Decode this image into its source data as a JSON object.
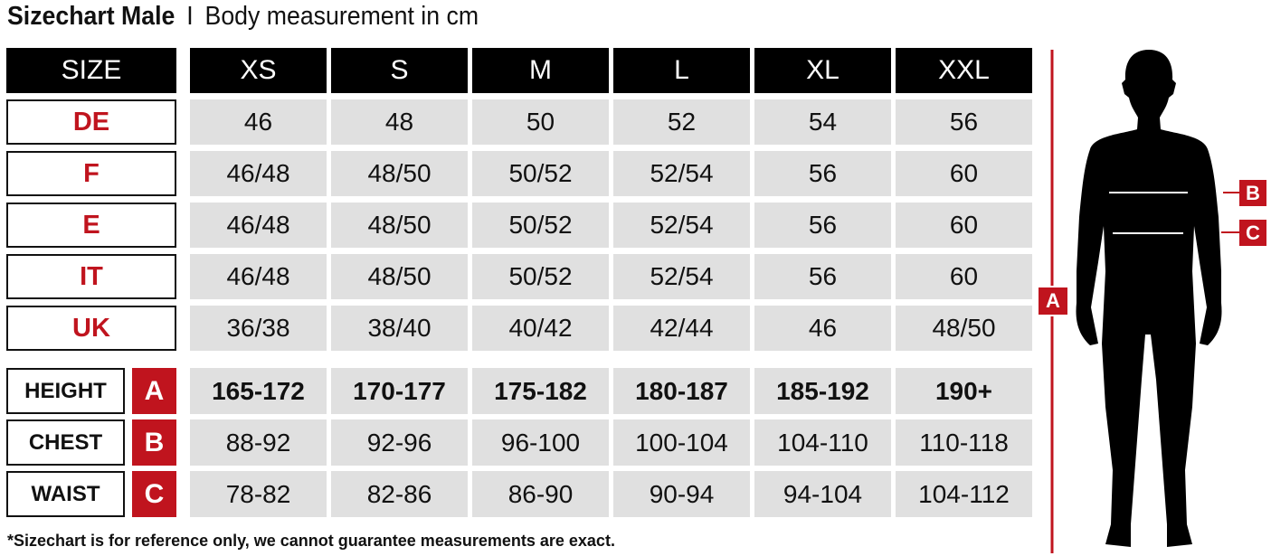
{
  "title": {
    "main": "Sizechart Male",
    "separator": "I",
    "sub": "Body measurement in cm"
  },
  "header": {
    "label": "SIZE",
    "sizes": [
      "XS",
      "S",
      "M",
      "L",
      "XL",
      "XXL"
    ]
  },
  "conversion_rows": [
    {
      "label": "DE",
      "values": [
        "46",
        "48",
        "50",
        "52",
        "54",
        "56"
      ]
    },
    {
      "label": "F",
      "values": [
        "46/48",
        "48/50",
        "50/52",
        "52/54",
        "56",
        "60"
      ]
    },
    {
      "label": "E",
      "values": [
        "46/48",
        "48/50",
        "50/52",
        "52/54",
        "56",
        "60"
      ]
    },
    {
      "label": "IT",
      "values": [
        "46/48",
        "48/50",
        "50/52",
        "52/54",
        "56",
        "60"
      ]
    },
    {
      "label": "UK",
      "values": [
        "36/38",
        "38/40",
        "40/42",
        "42/44",
        "46",
        "48/50"
      ]
    }
  ],
  "measurement_rows": [
    {
      "label": "HEIGHT",
      "letter": "A",
      "values": [
        "165-172",
        "170-177",
        "175-182",
        "180-187",
        "185-192",
        "190+"
      ]
    },
    {
      "label": "CHEST",
      "letter": "B",
      "values": [
        "88-92",
        "92-96",
        "96-100",
        "100-104",
        "104-110",
        "110-118"
      ]
    },
    {
      "label": "WAIST",
      "letter": "C",
      "values": [
        "78-82",
        "82-86",
        "86-90",
        "90-94",
        "94-104",
        "104-112"
      ]
    }
  ],
  "figure": {
    "markers": [
      "A",
      "B",
      "C"
    ]
  },
  "footnote": "*Sizechart is for reference only, we cannot guarantee measurements are exact.",
  "colors": {
    "accent": "#c0141e",
    "header_bg": "#000000",
    "cell_bg": "#e0e0e0"
  }
}
